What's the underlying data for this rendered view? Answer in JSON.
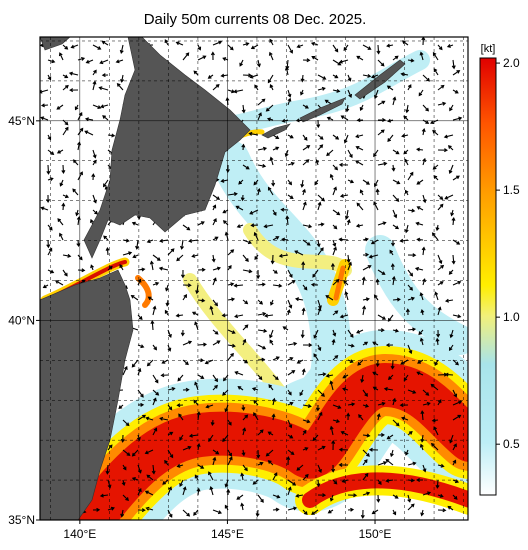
{
  "title": "Daily 50m currents 08 Dec. 2025.",
  "map": {
    "xlim": [
      138.65,
      153.15
    ],
    "ylim": [
      35,
      47.1
    ],
    "lon_labels": [
      {
        "value": 140,
        "label": "140°E"
      },
      {
        "value": 145,
        "label": "145°E"
      },
      {
        "value": 150,
        "label": "150°E"
      }
    ],
    "lat_labels": [
      {
        "value": 45,
        "label": "45°N"
      },
      {
        "value": 40,
        "label": "40°N"
      },
      {
        "value": 35,
        "label": "35°N"
      }
    ]
  },
  "colorbar": {
    "unit": "[kt]",
    "lim": [
      0.3,
      2.02
    ],
    "ticks": [
      {
        "value": 2,
        "label": "2.0"
      },
      {
        "value": 1.5,
        "label": "1.5"
      },
      {
        "value": 1,
        "label": "1.0"
      },
      {
        "value": 0.5,
        "label": "0.5"
      }
    ]
  }
}
